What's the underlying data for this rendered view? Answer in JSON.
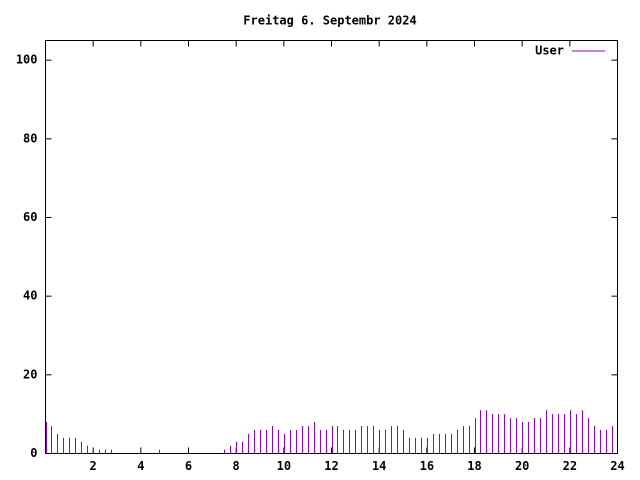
{
  "chart_data": {
    "type": "impulses",
    "title": "Freitag 6. Septembr 2024",
    "x": [
      0,
      0.25,
      0.5,
      0.75,
      1,
      1.25,
      1.5,
      1.75,
      2,
      2.25,
      2.5,
      2.75,
      3,
      3.25,
      3.5,
      3.75,
      4,
      4.25,
      4.5,
      4.75,
      5,
      5.25,
      5.5,
      5.75,
      6,
      6.25,
      6.5,
      6.75,
      7,
      7.25,
      7.5,
      7.75,
      8,
      8.25,
      8.5,
      8.75,
      9,
      9.25,
      9.5,
      9.75,
      10,
      10.25,
      10.5,
      10.75,
      11,
      11.25,
      11.5,
      11.75,
      12,
      12.25,
      12.5,
      12.75,
      13,
      13.25,
      13.5,
      13.75,
      14,
      14.25,
      14.5,
      14.75,
      15,
      15.25,
      15.5,
      15.75,
      16,
      16.25,
      16.5,
      16.75,
      17,
      17.25,
      17.5,
      17.75,
      18,
      18.25,
      18.5,
      18.75,
      19,
      19.25,
      19.5,
      19.75,
      20,
      20.25,
      20.5,
      20.75,
      21,
      21.25,
      21.5,
      21.75,
      22,
      22.25,
      22.5,
      22.75,
      23,
      23.25,
      23.5,
      23.75
    ],
    "series": [
      {
        "name": "User",
        "color": "#9400d3",
        "values": [
          8,
          7,
          5,
          4,
          4,
          4,
          3,
          2,
          1,
          1,
          1,
          1,
          0,
          0,
          0,
          0,
          0,
          0,
          0,
          1,
          0,
          0,
          0,
          0,
          0,
          0,
          0,
          0,
          0,
          0,
          1,
          2,
          3,
          3,
          5,
          6,
          6,
          6,
          7,
          6,
          5,
          6,
          6,
          7,
          7,
          8,
          6,
          6,
          7,
          7,
          6,
          6,
          6,
          7,
          7,
          7,
          6,
          6,
          7,
          7,
          6,
          4,
          4,
          4,
          4,
          5,
          5,
          5,
          5,
          6,
          7,
          7,
          9,
          11,
          11,
          10,
          10,
          10,
          9,
          9,
          8,
          8,
          9,
          9,
          11,
          10,
          10,
          10,
          11,
          10,
          11,
          9,
          7,
          6,
          6,
          7
        ]
      }
    ],
    "xlim": [
      0,
      24
    ],
    "xticks": [
      2,
      4,
      6,
      8,
      10,
      12,
      14,
      16,
      18,
      20,
      22,
      24
    ],
    "ylim": [
      0,
      105
    ],
    "yticks": [
      0,
      20,
      40,
      60,
      80,
      100
    ],
    "legend": "top-right"
  }
}
